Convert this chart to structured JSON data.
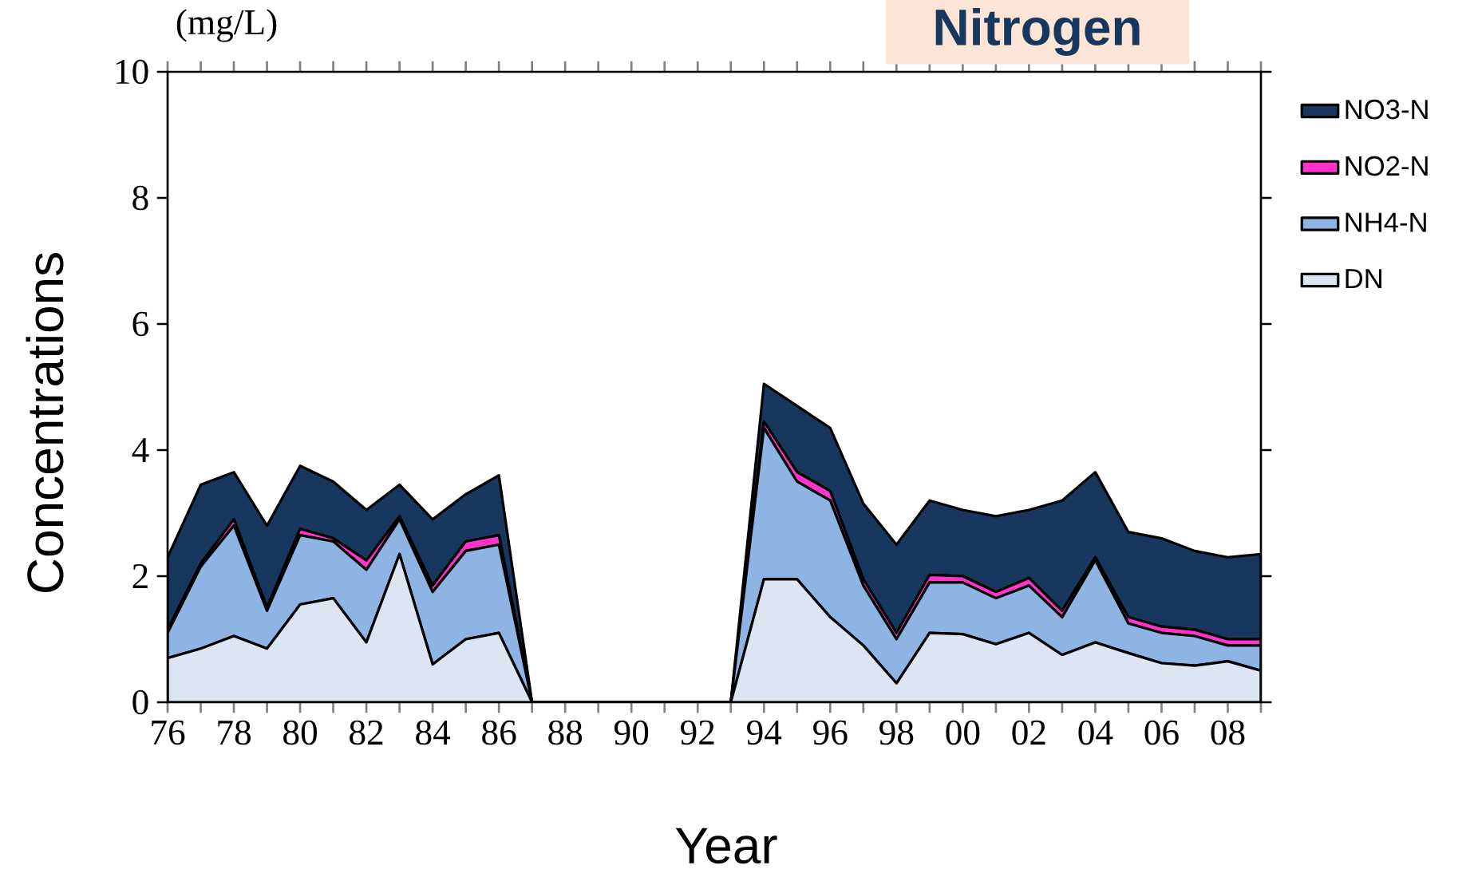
{
  "chart_data": {
    "type": "area",
    "stacked": true,
    "title": "Nitrogen",
    "xlabel": "Year",
    "ylabel": "Concentrations",
    "annotations": [
      "(mg/L)"
    ],
    "categories": [
      "76",
      null,
      "78",
      null,
      "80",
      null,
      "82",
      null,
      "84",
      null,
      "86",
      null,
      "88",
      null,
      "90",
      null,
      "92",
      null,
      "94",
      null,
      "96",
      null,
      "98",
      null,
      "00",
      null,
      "02",
      null,
      "04",
      null,
      "06",
      null,
      "08",
      null
    ],
    "series": [
      {
        "name": "DN",
        "color": "#dce6f2",
        "values": [
          0.7,
          0.85,
          1.05,
          0.85,
          1.55,
          1.65,
          0.95,
          2.35,
          0.6,
          1.0,
          1.1,
          0,
          0,
          0,
          0,
          0,
          0,
          0,
          1.95,
          1.95,
          1.35,
          0.9,
          0.3,
          1.1,
          1.08,
          0.92,
          1.1,
          0.75,
          0.95,
          0.78,
          0.62,
          0.58,
          0.65,
          0.5
        ]
      },
      {
        "name": "NH4-N",
        "color": "#8eb4e3",
        "values": [
          0.4,
          1.3,
          1.75,
          0.6,
          1.1,
          0.9,
          1.15,
          0.55,
          1.15,
          1.4,
          1.4,
          0,
          0,
          0,
          0,
          0,
          0,
          0,
          2.4,
          1.55,
          1.85,
          0.95,
          0.7,
          0.8,
          0.82,
          0.73,
          0.75,
          0.6,
          1.3,
          0.47,
          0.48,
          0.47,
          0.25,
          0.4
        ]
      },
      {
        "name": "NO2-N",
        "color": "#ff33cc",
        "values": [
          0.05,
          0.05,
          0.1,
          0.05,
          0.1,
          0.05,
          0.15,
          0.05,
          0.1,
          0.15,
          0.15,
          0,
          0,
          0,
          0,
          0,
          0,
          0,
          0.1,
          0.15,
          0.15,
          0.1,
          0.1,
          0.12,
          0.1,
          0.1,
          0.12,
          0.1,
          0.05,
          0.1,
          0.1,
          0.1,
          0.1,
          0.1
        ]
      },
      {
        "name": "NO3-N",
        "color": "#17375e",
        "values": [
          1.15,
          1.25,
          0.75,
          1.3,
          1.0,
          0.9,
          0.8,
          0.5,
          1.05,
          0.75,
          0.95,
          0,
          0,
          0,
          0,
          0,
          0,
          0,
          0.6,
          1.05,
          1.0,
          1.2,
          1.4,
          1.18,
          1.05,
          1.2,
          1.08,
          1.75,
          1.35,
          1.35,
          1.4,
          1.25,
          1.3,
          1.35
        ]
      }
    ],
    "ylim": [
      0,
      10
    ],
    "yticks": [
      0,
      2,
      4,
      6,
      8,
      10
    ],
    "legend": "right"
  }
}
